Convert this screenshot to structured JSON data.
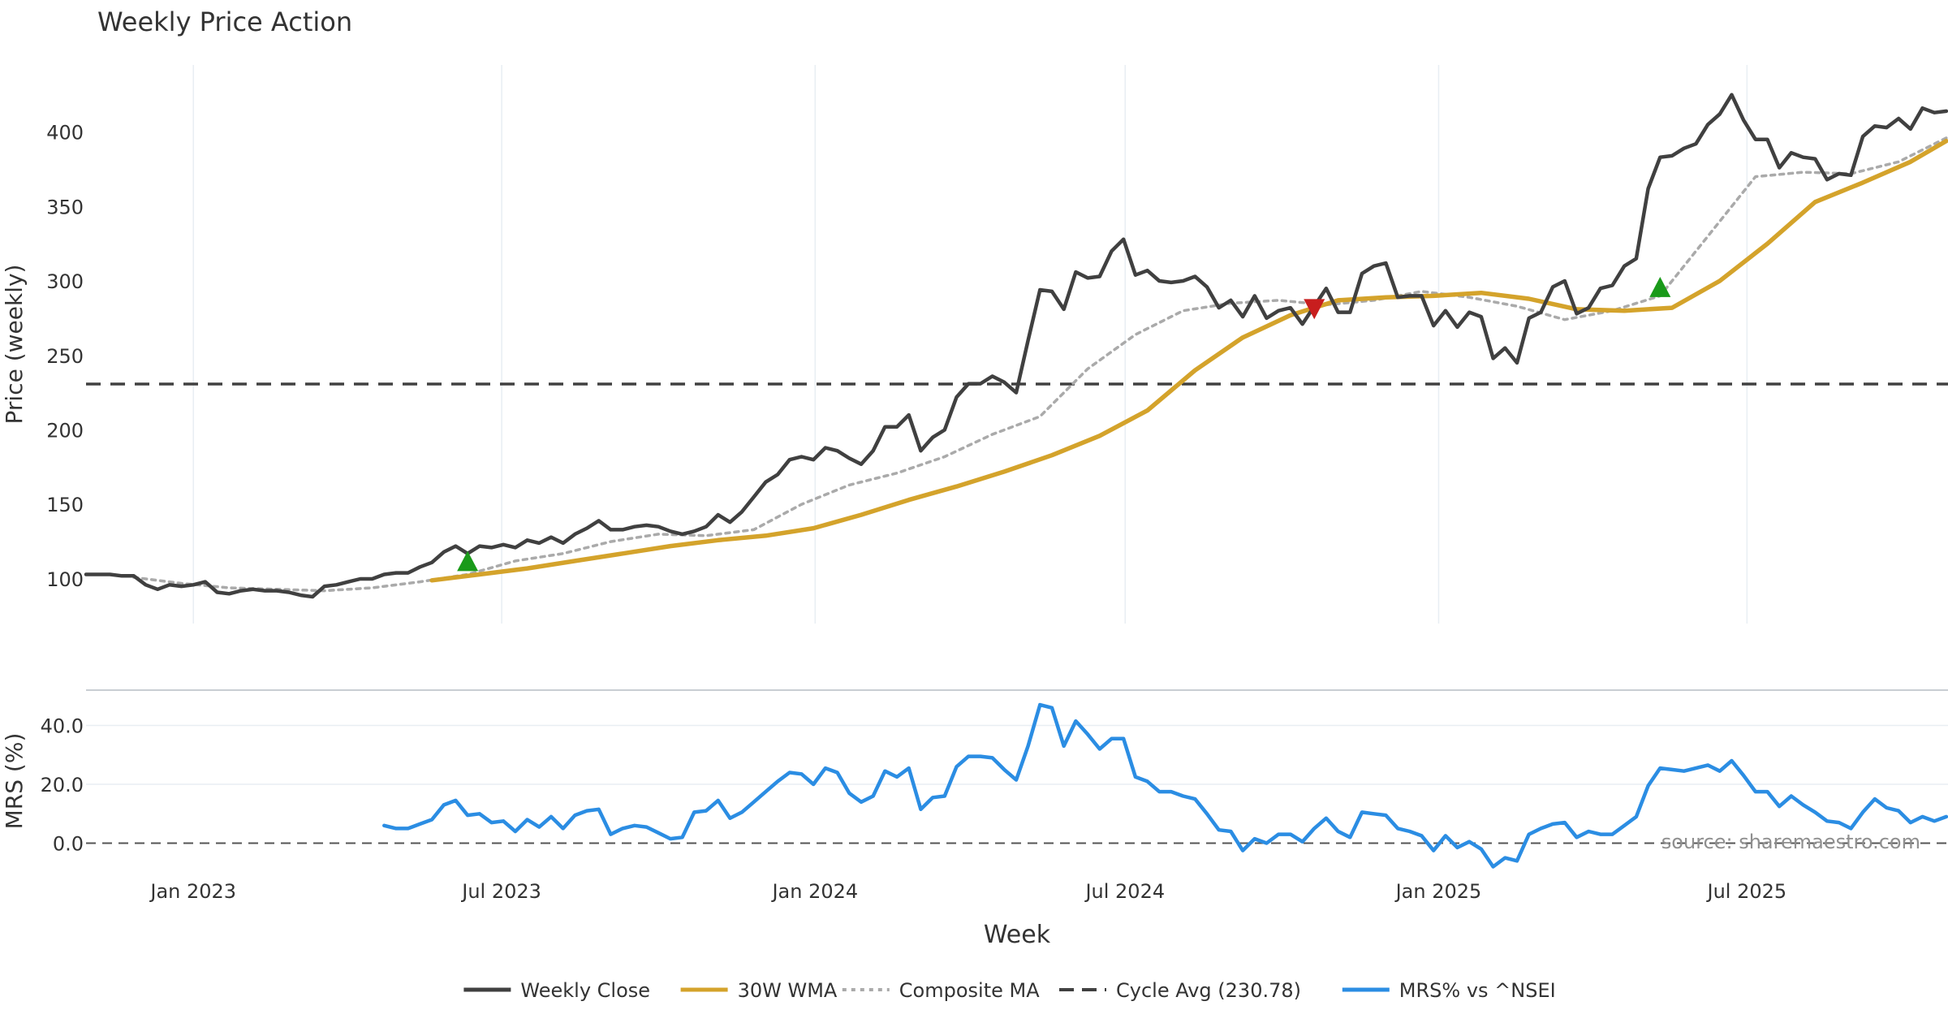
{
  "chart_data": [
    {
      "type": "line",
      "title": "Weekly Price Action",
      "xlabel": "",
      "ylabel": "Price (weekly)",
      "ylim": [
        70,
        445
      ],
      "yticks": [
        100,
        150,
        200,
        250,
        300,
        350,
        400
      ],
      "x_tick_labels": [
        "Jan 2023",
        "Jul 2023",
        "Jan 2024",
        "Jul 2024",
        "Jan 2025",
        "Jul 2025"
      ],
      "x_tick_dates": [
        "2023-01-01",
        "2023-07-01",
        "2024-01-01",
        "2024-07-01",
        "2025-01-01",
        "2025-07-01"
      ],
      "xlim": [
        "2022-10-30",
        "2025-10-27"
      ],
      "grid": "vertical",
      "series": [
        {
          "name": "Weekly Close",
          "style": "solid",
          "x": [
            "2022-10-30",
            "2022-11-06",
            "2022-11-13",
            "2022-11-20",
            "2022-11-27",
            "2022-12-04",
            "2022-12-11",
            "2022-12-18",
            "2022-12-25",
            "2023-01-01",
            "2023-01-08",
            "2023-01-15",
            "2023-01-22",
            "2023-01-29",
            "2023-02-05",
            "2023-02-12",
            "2023-02-19",
            "2023-02-26",
            "2023-03-05",
            "2023-03-12",
            "2023-03-19",
            "2023-03-26",
            "2023-04-02",
            "2023-04-09",
            "2023-04-16",
            "2023-04-23",
            "2023-04-30",
            "2023-05-07",
            "2023-05-14",
            "2023-05-21",
            "2023-05-28",
            "2023-06-04",
            "2023-06-11",
            "2023-06-18",
            "2023-06-25",
            "2023-07-02",
            "2023-07-09",
            "2023-07-16",
            "2023-07-23",
            "2023-07-30",
            "2023-08-06",
            "2023-08-13",
            "2023-08-20",
            "2023-08-27",
            "2023-09-03",
            "2023-09-10",
            "2023-09-17",
            "2023-09-24",
            "2023-10-01",
            "2023-10-08",
            "2023-10-15",
            "2023-10-22",
            "2023-10-29",
            "2023-11-05",
            "2023-11-12",
            "2023-11-19",
            "2023-11-26",
            "2023-12-03",
            "2023-12-10",
            "2023-12-17",
            "2023-12-24",
            "2023-12-31",
            "2024-01-07",
            "2024-01-14",
            "2024-01-21",
            "2024-01-28",
            "2024-02-04",
            "2024-02-11",
            "2024-02-18",
            "2024-02-25",
            "2024-03-03",
            "2024-03-10",
            "2024-03-17",
            "2024-03-24",
            "2024-03-31",
            "2024-04-07",
            "2024-04-14",
            "2024-04-21",
            "2024-04-28",
            "2024-05-05",
            "2024-05-12",
            "2024-05-19",
            "2024-05-26",
            "2024-06-02",
            "2024-06-09",
            "2024-06-16",
            "2024-06-23",
            "2024-06-30",
            "2024-07-07",
            "2024-07-14",
            "2024-07-21",
            "2024-07-28",
            "2024-08-04",
            "2024-08-11",
            "2024-08-18",
            "2024-08-25",
            "2024-09-01",
            "2024-09-08",
            "2024-09-15",
            "2024-09-22",
            "2024-09-29",
            "2024-10-06",
            "2024-10-13",
            "2024-10-20",
            "2024-10-27",
            "2024-11-03",
            "2024-11-10",
            "2024-11-17",
            "2024-11-24",
            "2024-12-01",
            "2024-12-08",
            "2024-12-15",
            "2024-12-22",
            "2024-12-29",
            "2025-01-05",
            "2025-01-12",
            "2025-01-19",
            "2025-01-26",
            "2025-02-02",
            "2025-02-09",
            "2025-02-16",
            "2025-02-23",
            "2025-03-02",
            "2025-03-09",
            "2025-03-16",
            "2025-03-23",
            "2025-03-30",
            "2025-04-06",
            "2025-04-13",
            "2025-04-20",
            "2025-04-27",
            "2025-05-04",
            "2025-05-11",
            "2025-05-18",
            "2025-05-25",
            "2025-06-01",
            "2025-06-08",
            "2025-06-15",
            "2025-06-22",
            "2025-06-29",
            "2025-07-06",
            "2025-07-13",
            "2025-07-20",
            "2025-07-27",
            "2025-08-03",
            "2025-08-10",
            "2025-08-17",
            "2025-08-24",
            "2025-08-31",
            "2025-09-07",
            "2025-09-14",
            "2025-09-21",
            "2025-09-28",
            "2025-10-05",
            "2025-10-12",
            "2025-10-19",
            "2025-10-26"
          ],
          "y": [
            103,
            103,
            103,
            102,
            102,
            96,
            93,
            96,
            95,
            96,
            98,
            91,
            90,
            92,
            93,
            92,
            92,
            91,
            89,
            88,
            95,
            96,
            98,
            100,
            100,
            103,
            104,
            104,
            108,
            111,
            118,
            122,
            117,
            122,
            121,
            123,
            121,
            126,
            124,
            128,
            124,
            130,
            134,
            139,
            133,
            133,
            135,
            136,
            135,
            132,
            130,
            132,
            135,
            143,
            138,
            145,
            155,
            165,
            170,
            180,
            182,
            180,
            188,
            186,
            181,
            177,
            186,
            202,
            202,
            210,
            186,
            195,
            200,
            222,
            231,
            231,
            236,
            232,
            225,
            260,
            294,
            293,
            281,
            306,
            302,
            303,
            320,
            328,
            304,
            307,
            300,
            299,
            300,
            303,
            296,
            282,
            287,
            276,
            290,
            275,
            280,
            282,
            271,
            283,
            295,
            279,
            279,
            305,
            310,
            312,
            289,
            290,
            290,
            270,
            280,
            269,
            279,
            276,
            248,
            255,
            245,
            275,
            279,
            296,
            300,
            278,
            282,
            295,
            297,
            310,
            315,
            362,
            383,
            384,
            389,
            392,
            405,
            412,
            425,
            408,
            395,
            395,
            376,
            386,
            383,
            382,
            368,
            372,
            371,
            397,
            404,
            403,
            409,
            402,
            416,
            413,
            414
          ]
        },
        {
          "name": "30W WMA",
          "style": "solid",
          "x": [
            "2023-05-21",
            "2023-06-18",
            "2023-07-16",
            "2023-08-13",
            "2023-09-10",
            "2023-10-08",
            "2023-11-05",
            "2023-12-03",
            "2023-12-31",
            "2024-01-28",
            "2024-02-25",
            "2024-03-24",
            "2024-04-21",
            "2024-05-19",
            "2024-06-16",
            "2024-07-14",
            "2024-08-11",
            "2024-09-08",
            "2024-10-06",
            "2024-11-03",
            "2024-12-01",
            "2024-12-29",
            "2025-01-26",
            "2025-02-23",
            "2025-03-23",
            "2025-04-20",
            "2025-05-18",
            "2025-06-15",
            "2025-07-13",
            "2025-08-10",
            "2025-09-07",
            "2025-10-05",
            "2025-10-26"
          ],
          "y": [
            99,
            103,
            107,
            112,
            117,
            122,
            126,
            129,
            134,
            143,
            153,
            162,
            172,
            183,
            196,
            213,
            240,
            262,
            277,
            287,
            289,
            290,
            292,
            288,
            281,
            280,
            282,
            300,
            325,
            353,
            366,
            380,
            394
          ]
        },
        {
          "name": "Composite MA",
          "style": "dotted",
          "x": [
            "2022-11-27",
            "2022-12-25",
            "2023-01-22",
            "2023-02-19",
            "2023-03-19",
            "2023-04-16",
            "2023-05-14",
            "2023-06-11",
            "2023-07-09",
            "2023-08-06",
            "2023-09-03",
            "2023-10-01",
            "2023-10-29",
            "2023-11-26",
            "2023-12-24",
            "2024-01-21",
            "2024-02-18",
            "2024-03-17",
            "2024-04-14",
            "2024-05-12",
            "2024-06-09",
            "2024-07-07",
            "2024-08-04",
            "2024-09-01",
            "2024-09-29",
            "2024-10-27",
            "2024-11-24",
            "2024-12-22",
            "2025-01-19",
            "2025-02-16",
            "2025-03-16",
            "2025-04-13",
            "2025-05-11",
            "2025-06-08",
            "2025-07-06",
            "2025-08-03",
            "2025-08-31",
            "2025-09-28",
            "2025-10-26"
          ],
          "y": [
            101,
            97,
            94,
            93,
            92,
            94,
            98,
            103,
            112,
            117,
            125,
            130,
            129,
            133,
            150,
            163,
            171,
            182,
            197,
            209,
            241,
            264,
            280,
            285,
            287,
            284,
            287,
            293,
            289,
            283,
            274,
            280,
            290,
            330,
            370,
            373,
            372,
            380,
            396
          ]
        },
        {
          "name": "Cycle Avg (230.78)",
          "style": "dashed",
          "value": 230.78
        }
      ],
      "signals": [
        {
          "type": "buy",
          "x": "2023-06-11",
          "y": 110
        },
        {
          "type": "sell",
          "x": "2024-10-20",
          "y": 283
        },
        {
          "type": "buy",
          "x": "2025-05-11",
          "y": 294
        }
      ]
    },
    {
      "type": "line",
      "xlabel": "Week",
      "ylabel": "MRS (%)",
      "ylim": [
        -12,
        52
      ],
      "yticks": [
        0,
        20,
        40
      ],
      "ytick_labels": [
        "0.0",
        "20.0",
        "40.0"
      ],
      "reference_line": 0,
      "annotation": "source: sharemaestro.com",
      "series": [
        {
          "name": "MRS% vs ^NSEI",
          "style": "solid",
          "x": [
            "2023-04-23",
            "2023-04-30",
            "2023-05-07",
            "2023-05-14",
            "2023-05-21",
            "2023-05-28",
            "2023-06-04",
            "2023-06-11",
            "2023-06-18",
            "2023-06-25",
            "2023-07-02",
            "2023-07-09",
            "2023-07-16",
            "2023-07-23",
            "2023-07-30",
            "2023-08-06",
            "2023-08-13",
            "2023-08-20",
            "2023-08-27",
            "2023-09-03",
            "2023-09-10",
            "2023-09-17",
            "2023-09-24",
            "2023-10-01",
            "2023-10-08",
            "2023-10-15",
            "2023-10-22",
            "2023-10-29",
            "2023-11-05",
            "2023-11-12",
            "2023-11-19",
            "2023-11-26",
            "2023-12-03",
            "2023-12-10",
            "2023-12-17",
            "2023-12-24",
            "2023-12-31",
            "2024-01-07",
            "2024-01-14",
            "2024-01-21",
            "2024-01-28",
            "2024-02-04",
            "2024-02-11",
            "2024-02-18",
            "2024-02-25",
            "2024-03-03",
            "2024-03-10",
            "2024-03-17",
            "2024-03-24",
            "2024-03-31",
            "2024-04-07",
            "2024-04-14",
            "2024-04-21",
            "2024-04-28",
            "2024-05-05",
            "2024-05-12",
            "2024-05-19",
            "2024-05-26",
            "2024-06-02",
            "2024-06-09",
            "2024-06-16",
            "2024-06-23",
            "2024-06-30",
            "2024-07-07",
            "2024-07-14",
            "2024-07-21",
            "2024-07-28",
            "2024-08-04",
            "2024-08-11",
            "2024-08-18",
            "2024-08-25",
            "2024-09-01",
            "2024-09-08",
            "2024-09-15",
            "2024-09-22",
            "2024-09-29",
            "2024-10-06",
            "2024-10-13",
            "2024-10-20",
            "2024-10-27",
            "2024-11-03",
            "2024-11-10",
            "2024-11-17",
            "2024-11-24",
            "2024-12-01",
            "2024-12-08",
            "2024-12-15",
            "2024-12-22",
            "2024-12-29",
            "2025-01-05",
            "2025-01-12",
            "2025-01-19",
            "2025-01-26",
            "2025-02-02",
            "2025-02-09",
            "2025-02-16",
            "2025-02-23",
            "2025-03-02",
            "2025-03-09",
            "2025-03-16",
            "2025-03-23",
            "2025-03-30",
            "2025-04-06",
            "2025-04-13",
            "2025-04-20",
            "2025-04-27",
            "2025-05-04",
            "2025-05-11",
            "2025-05-18",
            "2025-05-25",
            "2025-06-01",
            "2025-06-08",
            "2025-06-15",
            "2025-06-22",
            "2025-06-29",
            "2025-07-06",
            "2025-07-13",
            "2025-07-20",
            "2025-07-27",
            "2025-08-03",
            "2025-08-10",
            "2025-08-17",
            "2025-08-24",
            "2025-08-31",
            "2025-09-07",
            "2025-09-14",
            "2025-09-21",
            "2025-09-28",
            "2025-10-05",
            "2025-10-12",
            "2025-10-19",
            "2025-10-26"
          ],
          "y": [
            6,
            5,
            5,
            6.5,
            8,
            13,
            14.5,
            9.5,
            10,
            7,
            7.5,
            4,
            8,
            5.5,
            9,
            5,
            9.5,
            11,
            11.5,
            3,
            5,
            6,
            5.5,
            3.5,
            1.5,
            2,
            10.5,
            11,
            14.5,
            8.5,
            10.5,
            14,
            17.5,
            21,
            24,
            23.5,
            20,
            25.5,
            24,
            17,
            14,
            16,
            24.5,
            22.5,
            25.5,
            11.5,
            15.5,
            16,
            26,
            29.5,
            29.5,
            29,
            25,
            21.5,
            33,
            47,
            46,
            33,
            41.5,
            37,
            32,
            35.5,
            35.5,
            22.5,
            21,
            17.5,
            17.5,
            16,
            15,
            10,
            4.5,
            4,
            -2.5,
            1.5,
            0,
            3,
            3,
            0.5,
            5,
            8.5,
            4,
            2,
            10.5,
            10,
            9.5,
            5,
            4,
            2.5,
            -2.5,
            2.5,
            -1.5,
            0.5,
            -2,
            -8,
            -5,
            -6,
            3,
            5,
            6.5,
            7,
            2,
            4,
            3,
            3,
            6,
            9,
            19.5,
            25.5,
            25,
            24.5,
            25.5,
            26.5,
            24.5,
            28,
            23,
            17.5,
            17.5,
            12.5,
            16,
            13,
            10.5,
            7.5,
            7,
            5,
            10.5,
            15,
            12,
            11,
            7,
            9,
            7.5,
            9
          ]
        }
      ]
    }
  ],
  "legend": {
    "placement": "bottom-center",
    "items": [
      {
        "label": "Weekly Close",
        "color": "#404040",
        "style": "solid"
      },
      {
        "label": "30W WMA",
        "color": "#d4a32b",
        "style": "solid"
      },
      {
        "label": "Composite MA",
        "color": "#aaaaaa",
        "style": "dotted"
      },
      {
        "label": "Cycle Avg (230.78)",
        "color": "#404040",
        "style": "dashed"
      },
      {
        "label": "MRS% vs ^NSEI",
        "color": "#2b8de3",
        "style": "solid"
      }
    ]
  },
  "colors": {
    "close": "#404040",
    "wma": "#d4a32b",
    "composite": "#aaaaaa",
    "cycle": "#404040",
    "mrs": "#2b8de3",
    "buy": "#1a9a1a",
    "sell": "#c81e1e",
    "grid": "#e8eef3"
  }
}
